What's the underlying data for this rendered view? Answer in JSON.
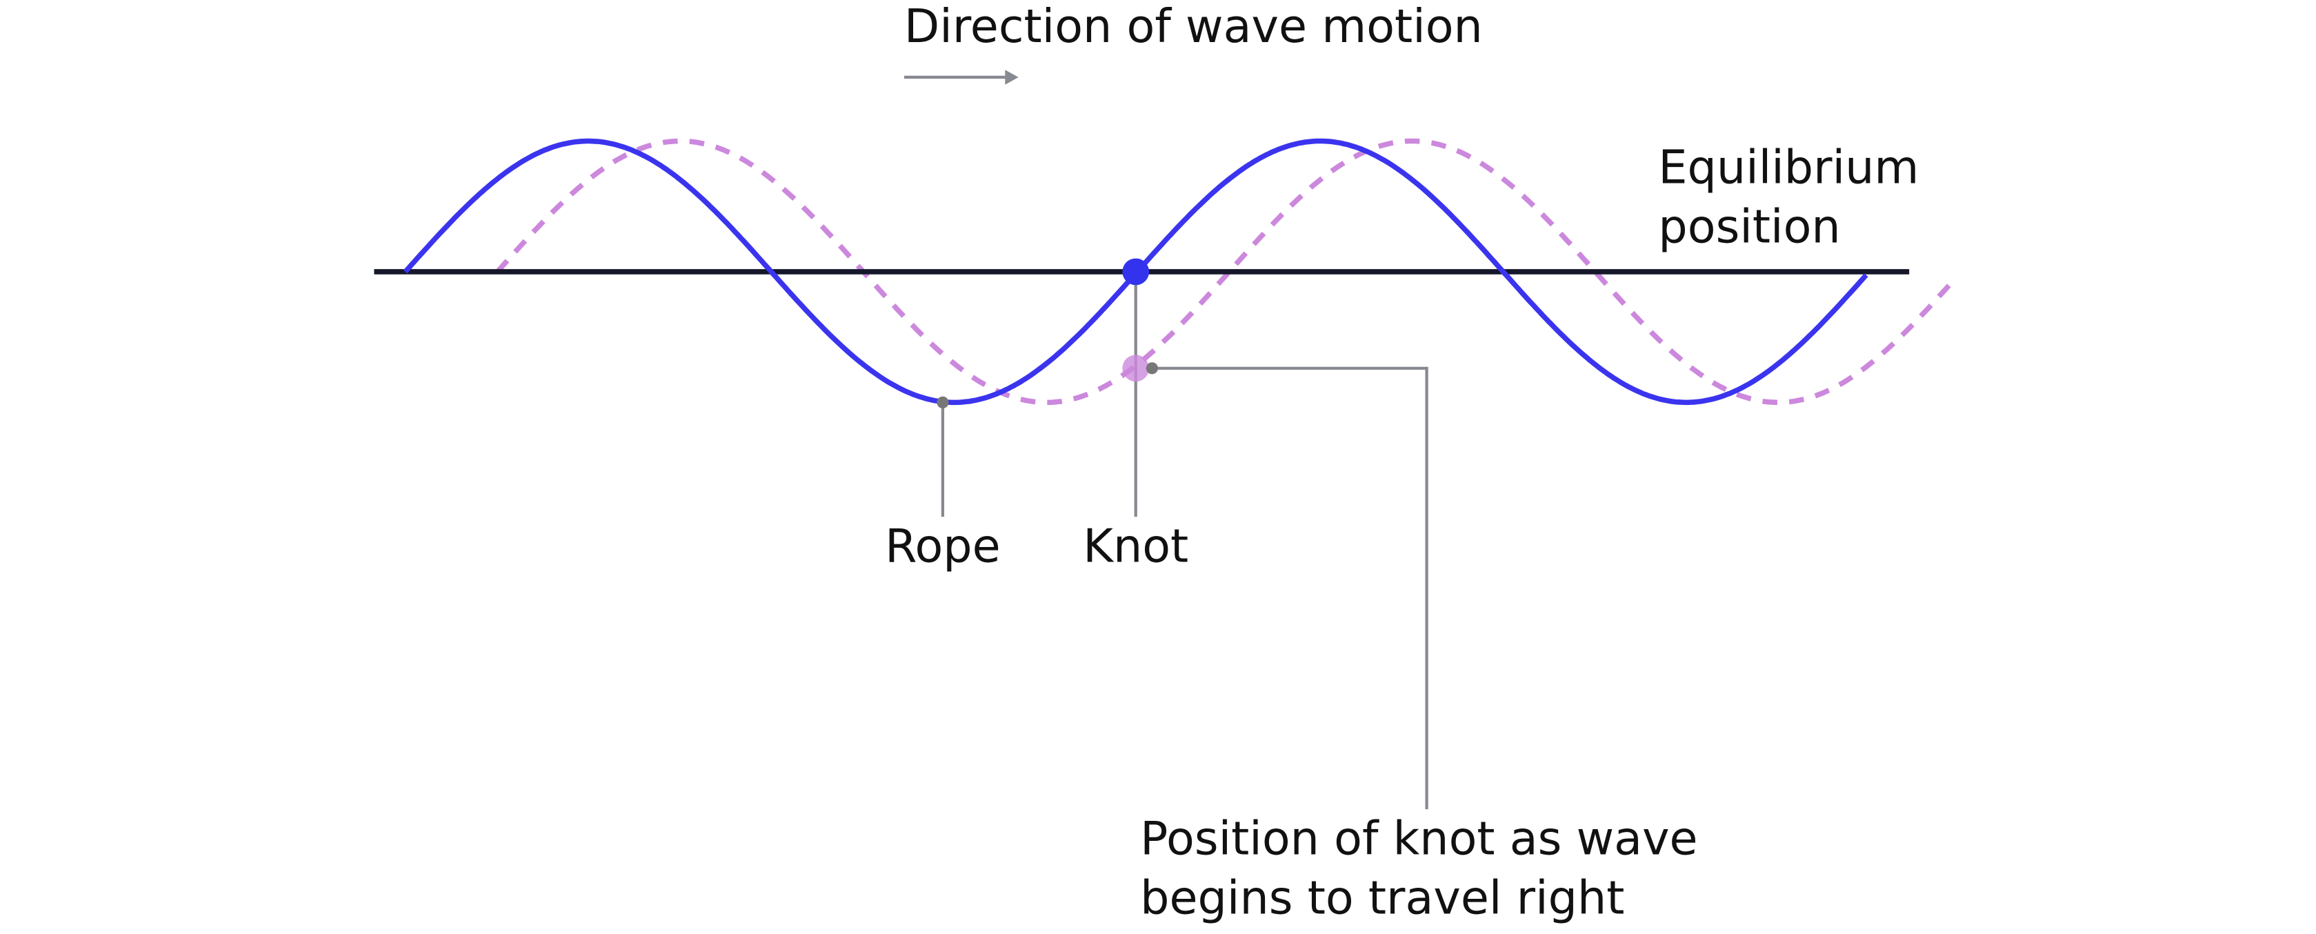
{
  "title": "Direction of wave motion",
  "labels": {
    "equilibrium": [
      "Equilibrium",
      "position"
    ],
    "rope": "Rope",
    "knot": "Knot",
    "knot_position": [
      "Position of knot as wave",
      "begins to travel right"
    ]
  }
}
